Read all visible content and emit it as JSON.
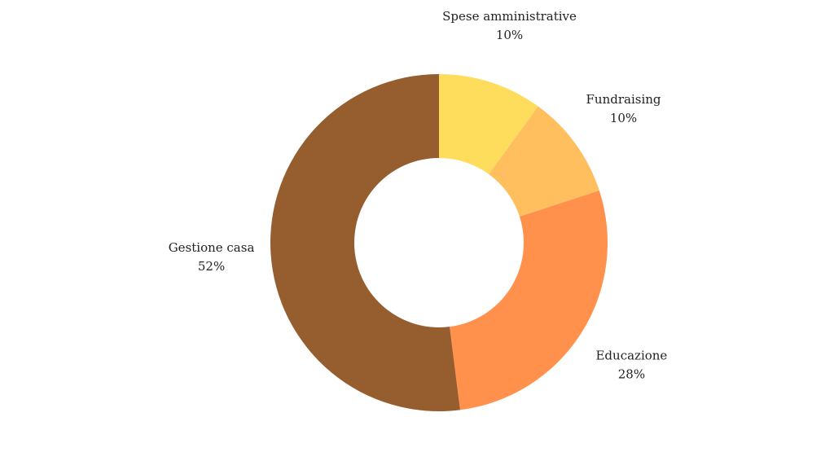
{
  "chart_data": {
    "type": "pie",
    "donut": true,
    "title": "",
    "slices": [
      {
        "label": "Spese amministrative",
        "value": 10,
        "display": "10%",
        "color": "#FFDD5C"
      },
      {
        "label": "Fundraising",
        "value": 10,
        "display": "10%",
        "color": "#FFBF5F"
      },
      {
        "label": "Educazione",
        "value": 28,
        "display": "28%",
        "color": "#FF914D"
      },
      {
        "label": "Gestione casa",
        "value": 52,
        "display": "52%",
        "color": "#965D2F"
      }
    ],
    "legend": "none",
    "start_angle_deg": 0,
    "direction": "clockwise"
  }
}
